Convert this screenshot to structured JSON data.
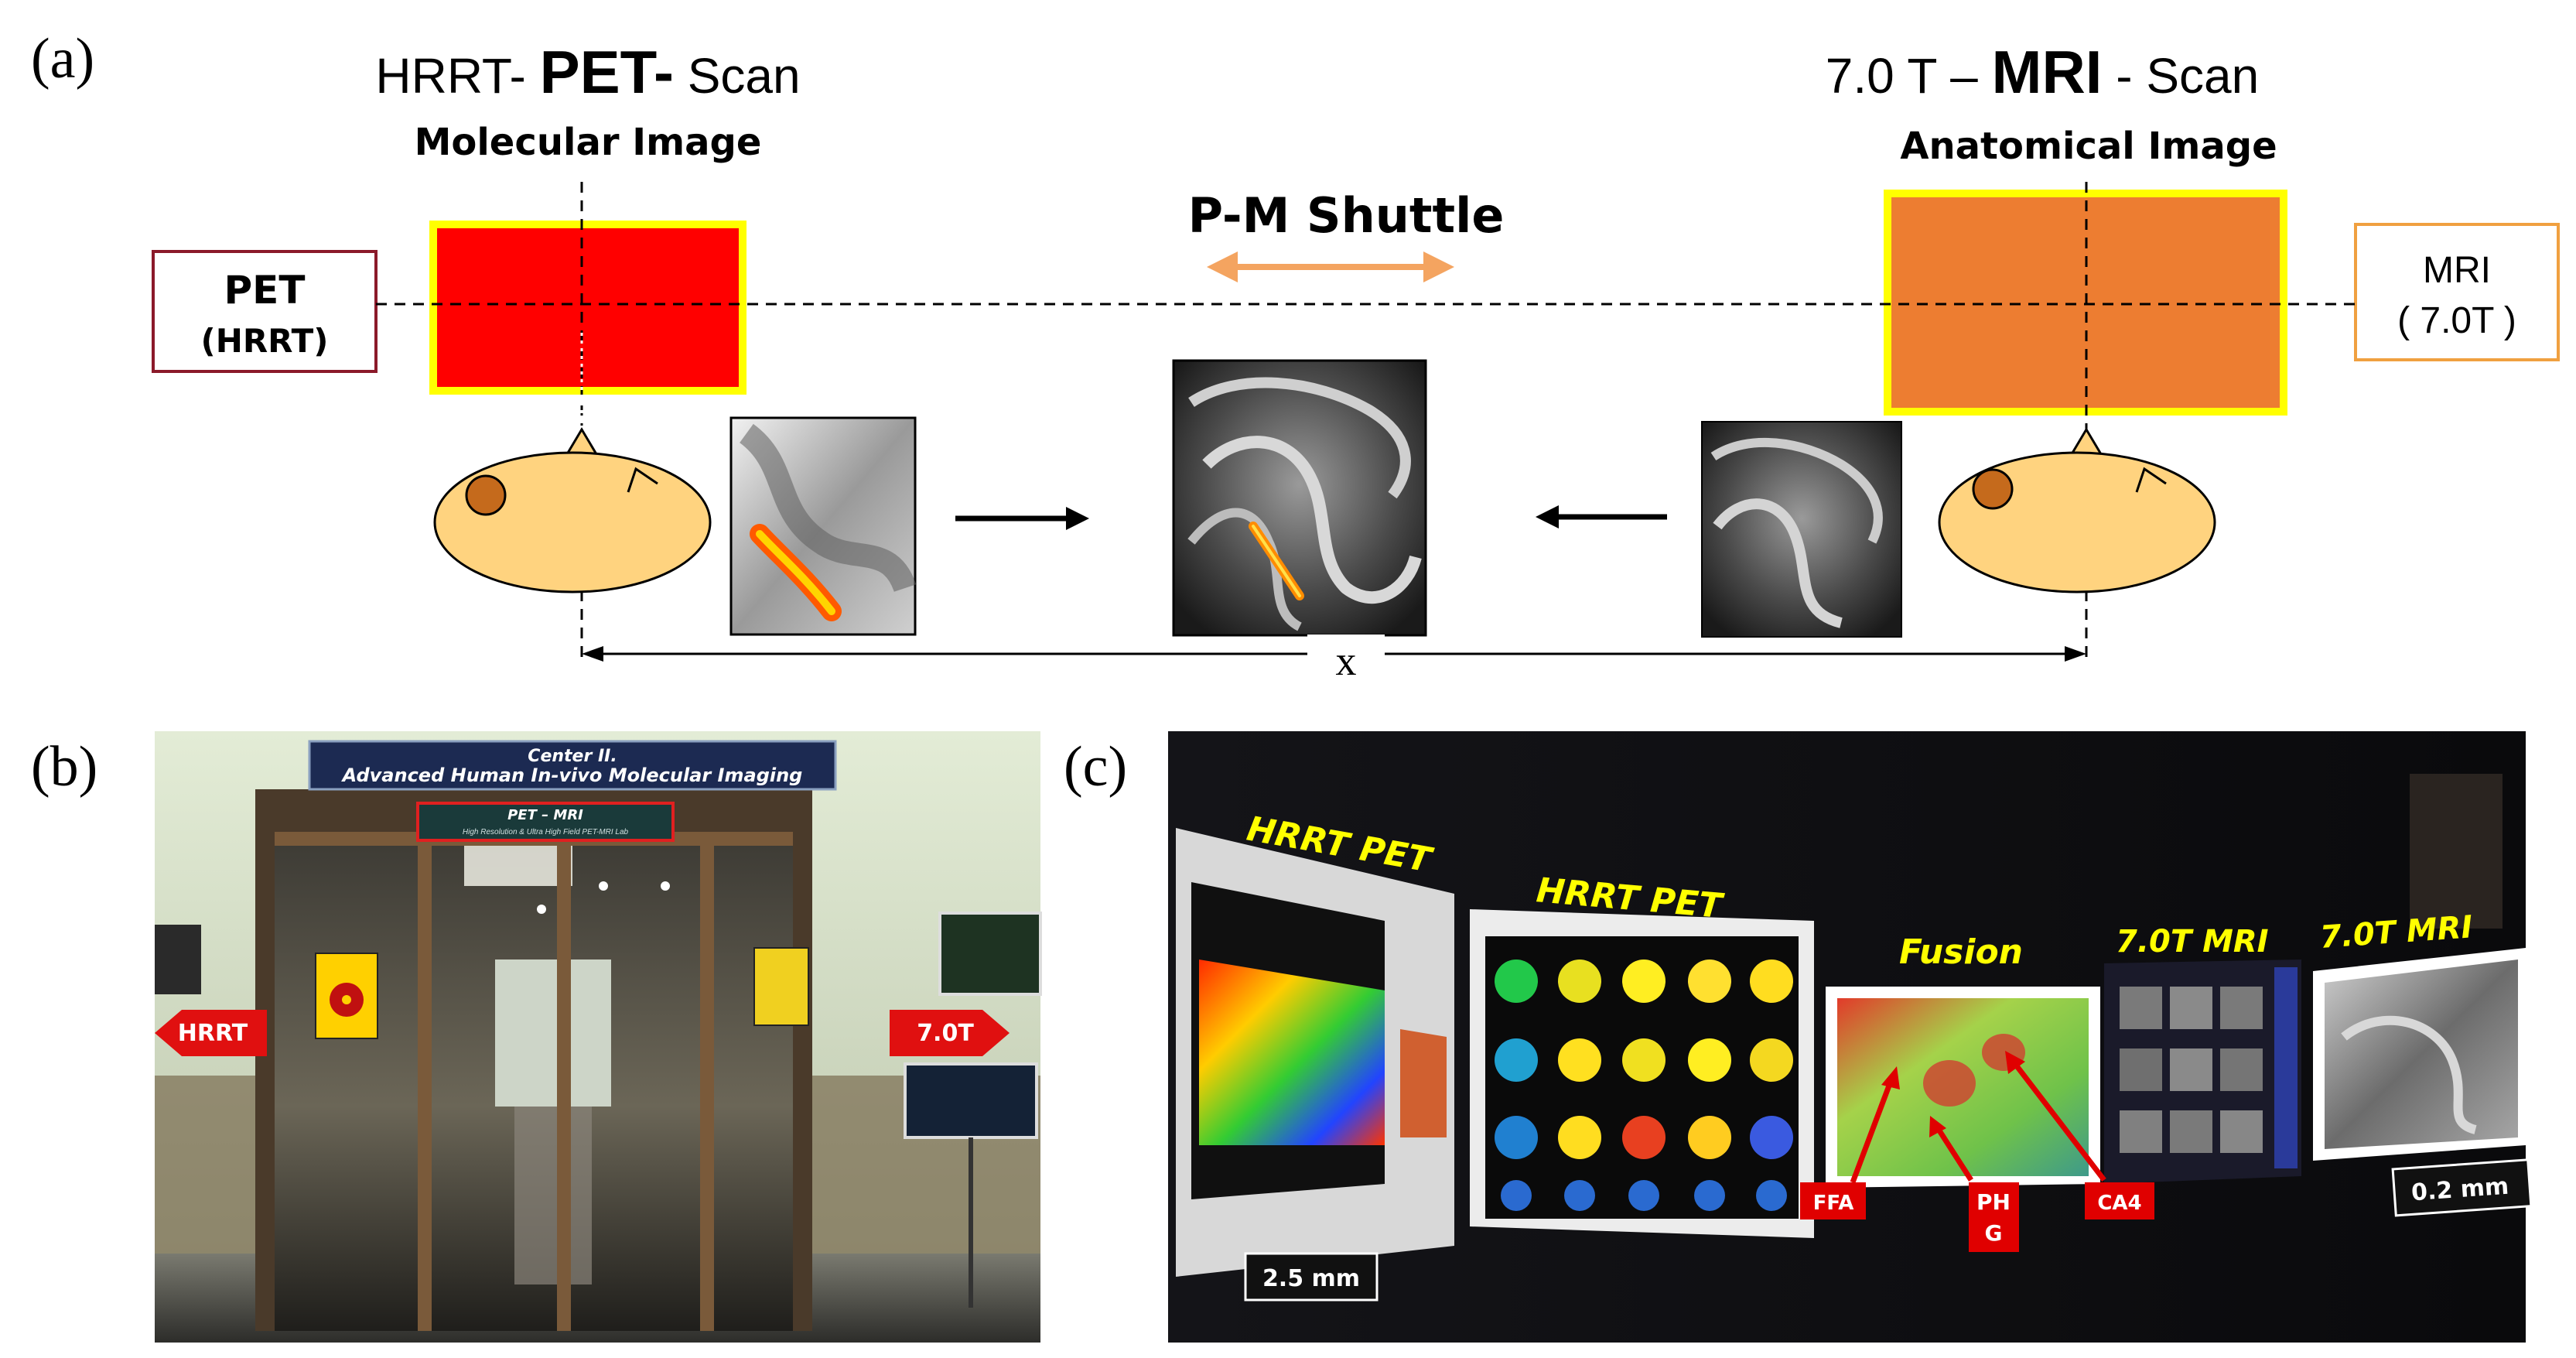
{
  "panel_a": {
    "label": "(a)",
    "pet_title": {
      "pre": "HRRT- ",
      "bold": "PET-",
      "post": " Scan"
    },
    "pet_subtitle": "Molecular Image",
    "mri_title": {
      "pre": "7.0 T – ",
      "bold": "MRI",
      "post": " - Scan"
    },
    "mri_subtitle": "Anatomical Image",
    "shuttle_label": "P-M Shuttle",
    "pet_box": {
      "line1": "PET",
      "line2": "(HRRT)"
    },
    "mri_box": {
      "line1": "MRI",
      "line2": "( 7.0T )"
    },
    "distance_label": "x",
    "colors": {
      "pet_block": "#ff0000",
      "mri_block": "#ed7d31",
      "block_border": "#ffff00",
      "head": "#ffd37f",
      "arrow": "#f4a460"
    }
  },
  "panel_b": {
    "label": "(b)",
    "sign_line1": "Center  II.",
    "sign_line2": "Advanced Human In-vivo Molecular Imaging",
    "plaque_line1": "PET – MRI",
    "plaque_line2": "High Resolution & Ultra High Field PET-MRI Lab",
    "left_arrow": "HRRT",
    "right_arrow": "7.0T"
  },
  "panel_c": {
    "label": "(c)",
    "monitor_labels": [
      "HRRT PET",
      "HRRT PET",
      "Fusion",
      "7.0T MRI",
      "7.0T MRI"
    ],
    "scale_left": "2.5 mm",
    "scale_right": "0.2 mm",
    "tags": [
      "FFA",
      "PH\nG",
      "CA4"
    ]
  }
}
